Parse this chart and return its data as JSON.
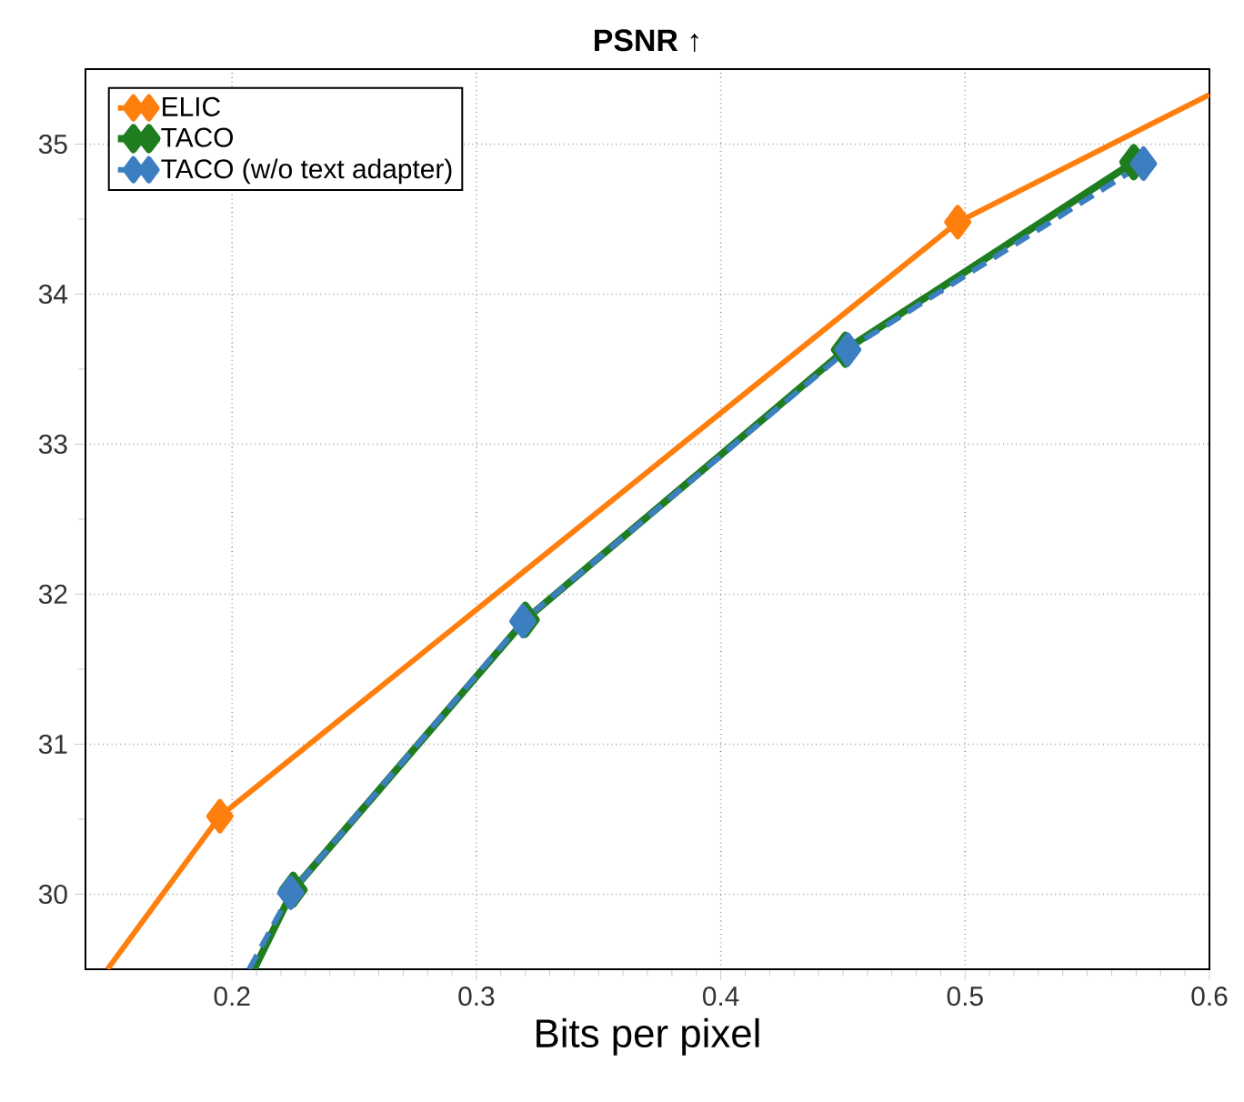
{
  "chart_data": {
    "type": "line",
    "title": "PSNR ↑",
    "xlabel": "Bits per pixel",
    "xlim": [
      0.14,
      0.6
    ],
    "ylim": [
      29.5,
      35.5
    ],
    "xticks": [
      0.2,
      0.3,
      0.4,
      0.5,
      0.6
    ],
    "yticks": [
      30,
      31,
      32,
      33,
      34,
      35
    ],
    "grid": true,
    "legend": "top left",
    "marker": "diamond",
    "series": [
      {
        "name": "ELIC",
        "color": "#ff7f0e",
        "line_style": "solid",
        "x": [
          0.149,
          0.195,
          0.497,
          0.6
        ],
        "values": [
          29.5,
          30.52,
          34.48,
          35.33
        ]
      },
      {
        "name": "TACO",
        "color": "#1e7d1e",
        "line_style": "solid",
        "x": [
          0.209,
          0.225,
          0.32,
          0.451,
          0.569
        ],
        "values": [
          29.5,
          30.03,
          31.83,
          33.63,
          34.88
        ]
      },
      {
        "name": "TACO (w/o text adapter)",
        "color": "#3c7fc0",
        "line_style": "dashed",
        "x": [
          0.207,
          0.224,
          0.319,
          0.452,
          0.573
        ],
        "values": [
          29.5,
          30.01,
          31.82,
          33.63,
          34.87
        ]
      }
    ]
  }
}
